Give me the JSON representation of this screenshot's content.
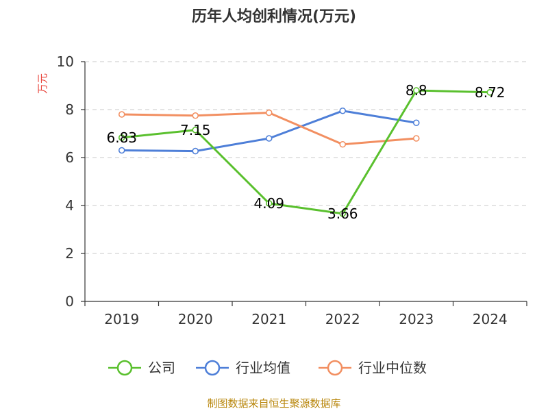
{
  "colors": {
    "company": "#5ac02e",
    "industry_avg": "#4e7fd8",
    "industry_median": "#f28f61",
    "grid": "#c8c8c8",
    "axis": "#333333",
    "unit": "#e8453c",
    "source": "#b8860b"
  },
  "chart_data": {
    "type": "line",
    "title": "历年人均创利情况(万元)",
    "ylabel": "万元",
    "xlabel": "",
    "categories": [
      "2019",
      "2020",
      "2021",
      "2022",
      "2023",
      "2024"
    ],
    "ylim": [
      0,
      10
    ],
    "yticks": [
      0,
      2,
      4,
      6,
      8,
      10
    ],
    "grid": true,
    "legend_position": "bottom",
    "series": [
      {
        "name": "公司",
        "color_key": "company",
        "values": [
          6.83,
          7.15,
          4.09,
          3.66,
          8.8,
          8.72
        ],
        "data_labels": [
          "6.83",
          "7.15",
          "4.09",
          "3.66",
          "8.8",
          "8.72"
        ]
      },
      {
        "name": "行业均值",
        "color_key": "industry_avg",
        "values": [
          6.3,
          6.27,
          6.8,
          7.95,
          7.45,
          null
        ],
        "data_labels": null
      },
      {
        "name": "行业中位数",
        "color_key": "industry_median",
        "values": [
          7.8,
          7.75,
          7.87,
          6.55,
          6.8,
          null
        ],
        "data_labels": null
      }
    ]
  },
  "footer": {
    "source": "制图数据来自恒生聚源数据库"
  }
}
